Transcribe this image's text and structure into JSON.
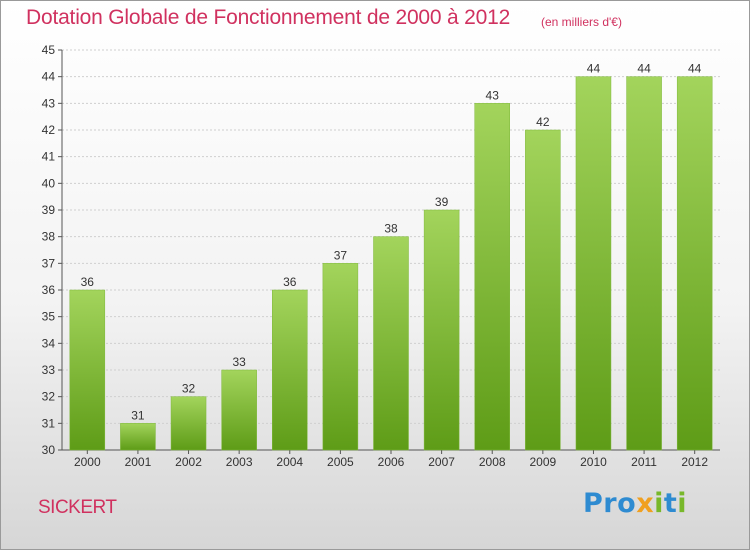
{
  "title": "Dotation Globale de Fonctionnement de 2000 à 2012",
  "subtitle": "(en milliers d'€)",
  "commune": "SICKERT",
  "logo": {
    "text": "Proxiti",
    "letters": [
      "P",
      "r",
      "o",
      "x",
      "i",
      "t",
      "i"
    ],
    "colors": [
      "#2e8bd1",
      "#2e8bd1",
      "#2e8bd1",
      "#f0a020",
      "#78b82a",
      "#2e8bd1",
      "#78b82a"
    ]
  },
  "colors": {
    "bar_top": "#9ccf55",
    "bar_bottom": "#5f9d18",
    "title": "#d0315f",
    "grid": "#cfcfcf"
  },
  "chart_data": {
    "type": "bar",
    "categories": [
      "2000",
      "2001",
      "2002",
      "2003",
      "2004",
      "2005",
      "2006",
      "2007",
      "2008",
      "2009",
      "2010",
      "2011",
      "2012"
    ],
    "values": [
      36,
      31,
      32,
      33,
      36,
      37,
      38,
      39,
      43,
      42,
      44,
      44,
      44
    ],
    "data_labels": [
      "36",
      "31",
      "32",
      "33",
      "36",
      "37",
      "38",
      "39",
      "43",
      "42",
      "44",
      "44",
      "44"
    ],
    "ylim": [
      30,
      45
    ],
    "yticks": [
      "30",
      "31",
      "32",
      "33",
      "34",
      "35",
      "36",
      "37",
      "38",
      "39",
      "40",
      "41",
      "42",
      "43",
      "44",
      "45"
    ],
    "grid": true,
    "xlabel": "",
    "ylabel": ""
  }
}
